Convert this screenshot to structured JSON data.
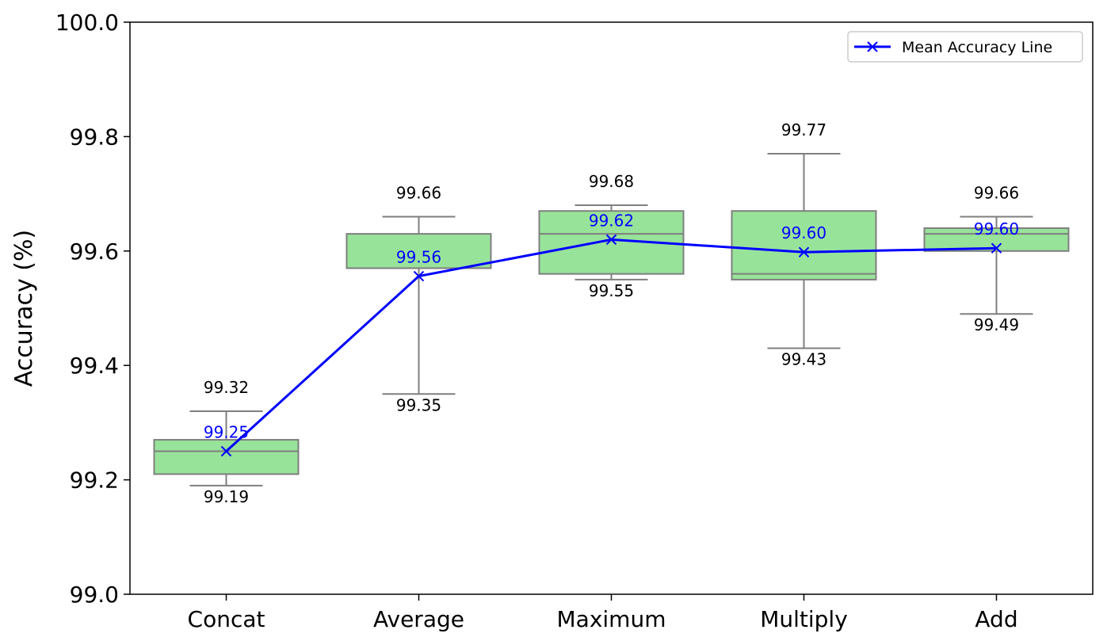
{
  "chart_data": {
    "type": "box",
    "title": "",
    "xlabel": "",
    "ylabel": "Accuracy (%)",
    "ylim": [
      99.0,
      100.0
    ],
    "yticks": [
      "99.0",
      "99.2",
      "99.4",
      "99.6",
      "99.8",
      "100.0"
    ],
    "categories": [
      "Concat",
      "Average",
      "Maximum",
      "Multiply",
      "Add"
    ],
    "boxes": [
      {
        "category": "Concat",
        "min": 99.19,
        "q1": 99.21,
        "median": 99.25,
        "q3": 99.27,
        "max": 99.32,
        "mean": 99.25
      },
      {
        "category": "Average",
        "min": 99.35,
        "q1": 99.57,
        "median": 99.57,
        "q3": 99.63,
        "max": 99.66,
        "mean": 99.56
      },
      {
        "category": "Maximum",
        "min": 99.55,
        "q1": 99.56,
        "median": 99.63,
        "q3": 99.67,
        "max": 99.68,
        "mean": 99.62
      },
      {
        "category": "Multiply",
        "min": 99.43,
        "q1": 99.55,
        "median": 99.56,
        "q3": 99.67,
        "max": 99.77,
        "mean": 99.6
      },
      {
        "category": "Add",
        "min": 99.49,
        "q1": 99.6,
        "median": 99.63,
        "q3": 99.64,
        "max": 99.66,
        "mean": 99.6
      }
    ],
    "labels": {
      "max": [
        "99.32",
        "99.66",
        "99.68",
        "99.77",
        "99.66"
      ],
      "min": [
        "99.19",
        "99.35",
        "99.55",
        "99.43",
        "99.49"
      ],
      "mean": [
        "99.25",
        "99.56",
        "99.62",
        "99.60",
        "99.60"
      ]
    },
    "series": [
      {
        "name": "Mean Accuracy Line",
        "values": [
          99.25,
          99.556,
          99.62,
          99.598,
          99.605
        ],
        "color": "#0000ff",
        "marker": "x"
      }
    ],
    "box_fill": "#98e39a",
    "box_edge": "#7f7f7f",
    "grid": false,
    "legend_position": "top-right"
  }
}
